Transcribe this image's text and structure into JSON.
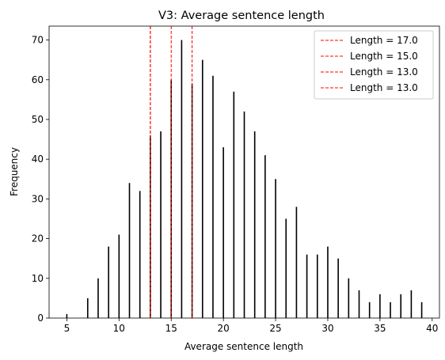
{
  "chart_data": {
    "type": "bar",
    "title": "V3: Average sentence length",
    "xlabel": "Average sentence length",
    "ylabel": "Frequency",
    "xlim": [
      3.3,
      40.7
    ],
    "ylim": [
      0,
      73.5
    ],
    "xticks": [
      5,
      10,
      15,
      20,
      25,
      30,
      35,
      40
    ],
    "yticks": [
      0,
      10,
      20,
      30,
      40,
      50,
      60,
      70
    ],
    "bar_color": "#000000",
    "legend_placement": "top-right",
    "x": [
      5,
      7,
      8,
      9,
      10,
      11,
      12,
      13,
      14,
      15,
      16,
      17,
      18,
      19,
      20,
      21,
      22,
      23,
      24,
      25,
      26,
      27,
      28,
      29,
      30,
      31,
      32,
      33,
      34,
      35,
      36,
      37,
      38,
      39
    ],
    "values": [
      1,
      5,
      10,
      18,
      21,
      34,
      32,
      46,
      47,
      60,
      70,
      59,
      65,
      61,
      43,
      57,
      52,
      47,
      41,
      35,
      25,
      28,
      16,
      16,
      18,
      15,
      10,
      7,
      4,
      6,
      4,
      6,
      7,
      4
    ],
    "reference_lines": [
      {
        "x": 17.0,
        "label": "Length = 17.0",
        "color": "#ff0000"
      },
      {
        "x": 15.0,
        "label": "Length = 15.0",
        "color": "#ff0000"
      },
      {
        "x": 13.0,
        "label": "Length = 13.0",
        "color": "#ff0000"
      },
      {
        "x": 13.0,
        "label": "Length = 13.0",
        "color": "#ff0000"
      }
    ]
  }
}
